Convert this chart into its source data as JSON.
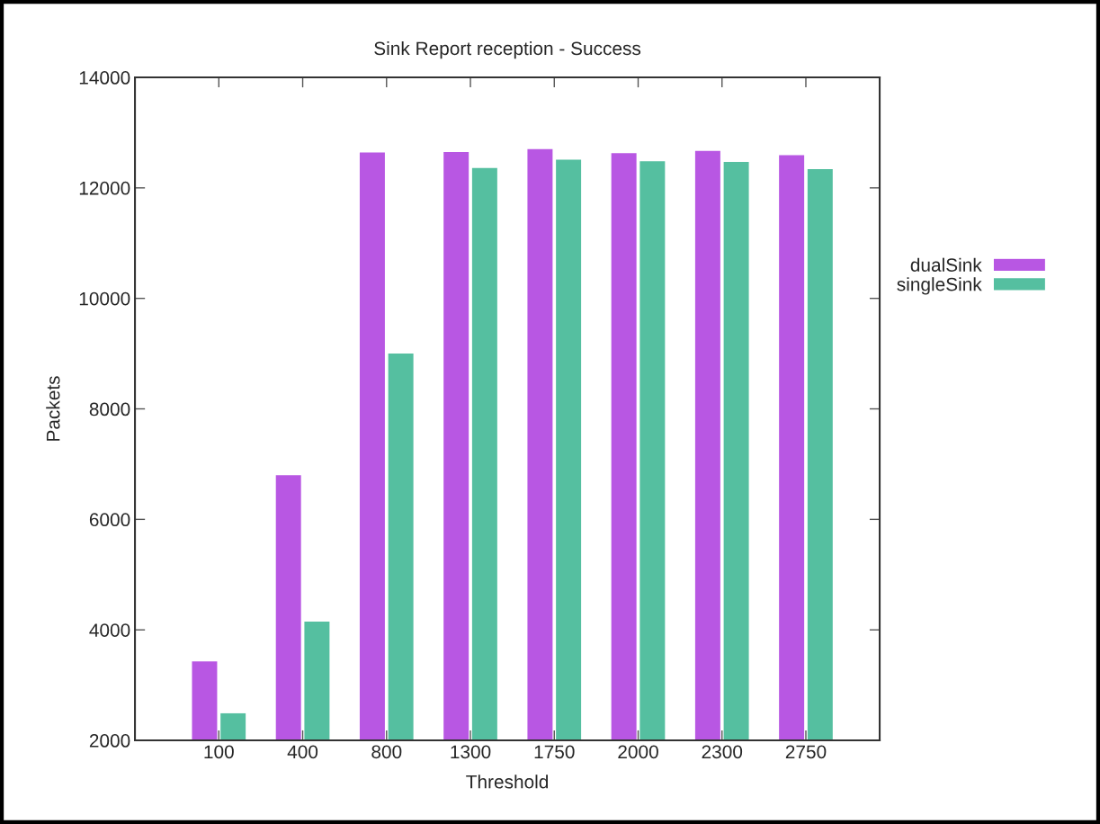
{
  "chart_data": {
    "type": "bar",
    "title": "Sink Report reception - Success",
    "xlabel": "Threshold",
    "ylabel": "Packets",
    "categories": [
      "100",
      "400",
      "800",
      "1300",
      "1750",
      "2000",
      "2300",
      "2750"
    ],
    "series": [
      {
        "name": "dualSink",
        "color": "#b857e3",
        "values": [
          3430,
          6800,
          12640,
          12650,
          12700,
          12630,
          12670,
          12590
        ]
      },
      {
        "name": "singleSink",
        "color": "#55bfa0",
        "values": [
          2490,
          4150,
          9000,
          12360,
          12510,
          12480,
          12470,
          12340
        ]
      }
    ],
    "ylim": [
      2000,
      14000
    ],
    "yticks": [
      2000,
      4000,
      6000,
      8000,
      10000,
      12000,
      14000
    ],
    "grid": false,
    "legend": "right"
  }
}
